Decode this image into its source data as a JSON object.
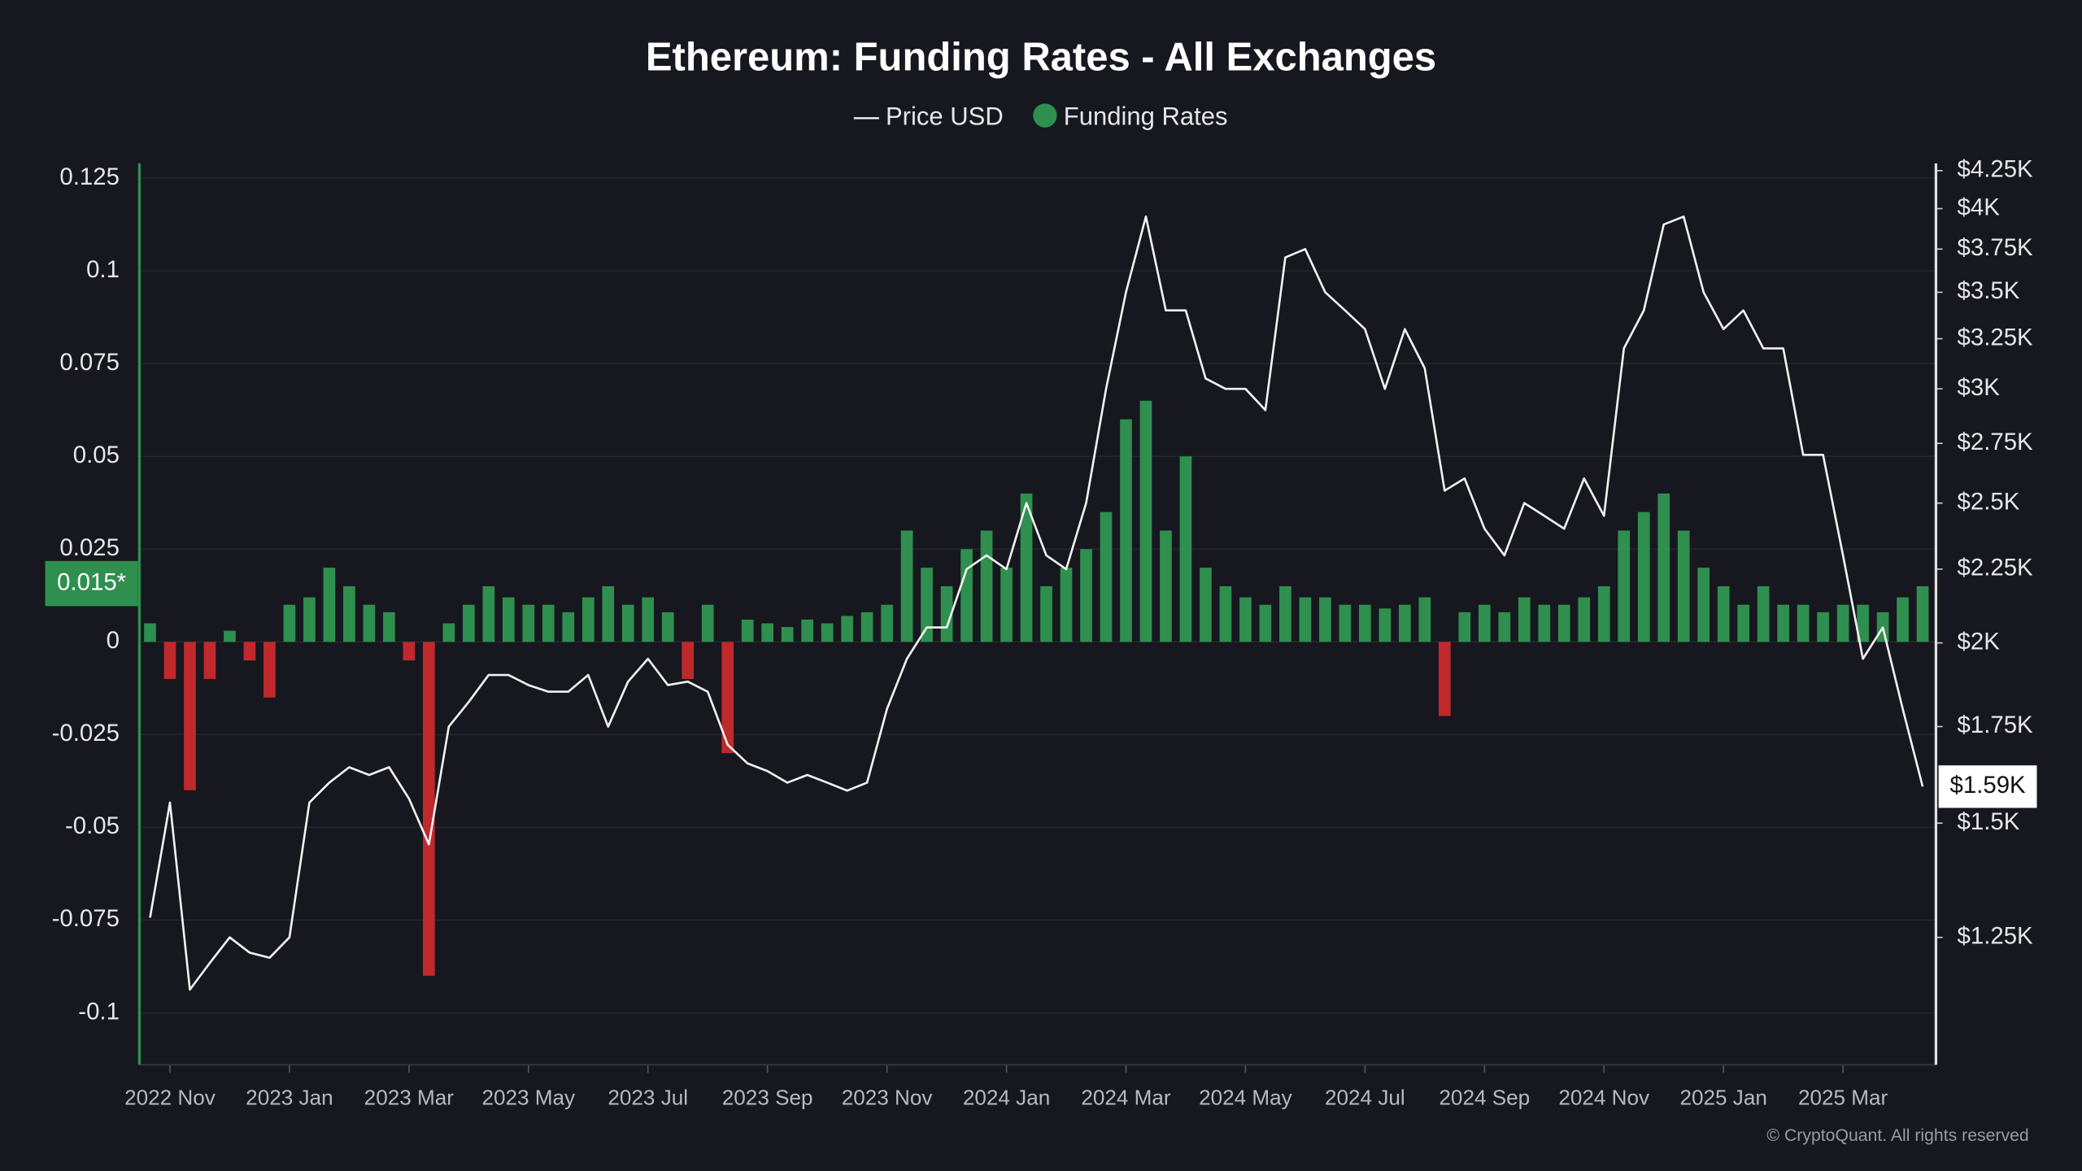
{
  "chart_data": {
    "type": "bar-line",
    "title": "Ethereum: Funding Rates - All Exchanges",
    "source": "© CryptoQuant. All rights reserved",
    "categories": [
      null,
      "2022 Nov",
      null,
      null,
      null,
      null,
      null,
      "2023 Jan",
      null,
      null,
      null,
      null,
      null,
      "2023 Mar",
      null,
      null,
      null,
      null,
      null,
      "2023 May",
      null,
      null,
      null,
      null,
      null,
      "2023 Jul",
      null,
      null,
      null,
      null,
      null,
      "2023 Sep",
      null,
      null,
      null,
      null,
      null,
      "2023 Nov",
      null,
      null,
      null,
      null,
      null,
      "2024 Jan",
      null,
      null,
      null,
      null,
      null,
      "2024 Mar",
      null,
      null,
      null,
      null,
      null,
      "2024 May",
      null,
      null,
      null,
      null,
      null,
      "2024 Jul",
      null,
      null,
      null,
      null,
      null,
      "2024 Sep",
      null,
      null,
      null,
      null,
      null,
      "2024 Nov",
      null,
      null,
      null,
      null,
      null,
      "2025 Jan",
      null,
      null,
      null,
      null,
      null,
      "2025 Mar",
      null,
      null,
      null,
      null
    ],
    "series": [
      {
        "name": "Price USD",
        "type": "line",
        "axis": "y2",
        "color": "#f2f2f2",
        "last_label": "$1.59K",
        "values": [
          1290,
          1550,
          1150,
          1200,
          1250,
          1220,
          1210,
          1250,
          1550,
          1600,
          1640,
          1620,
          1640,
          1560,
          1450,
          1750,
          1820,
          1900,
          1900,
          1870,
          1850,
          1850,
          1900,
          1750,
          1880,
          1950,
          1870,
          1880,
          1850,
          1700,
          1650,
          1630,
          1600,
          1620,
          1600,
          1580,
          1600,
          1800,
          1950,
          2050,
          2050,
          2250,
          2300,
          2250,
          2500,
          2300,
          2250,
          2500,
          3000,
          3500,
          3950,
          3400,
          3400,
          3050,
          3000,
          3000,
          2900,
          3700,
          3750,
          3500,
          3400,
          3300,
          3000,
          3300,
          3100,
          2550,
          2600,
          2400,
          2300,
          2500,
          2450,
          2400,
          2600,
          2450,
          3200,
          3400,
          3900,
          3950,
          3500,
          3300,
          3400,
          3200,
          3200,
          2700,
          2700,
          2300,
          1950,
          2050,
          1800,
          1590
        ]
      },
      {
        "name": "Funding Rates",
        "type": "bar",
        "color": "#2f8f4e",
        "negative_color": "#c0292b",
        "last_label": "0.015*",
        "values": [
          0.005,
          -0.01,
          -0.04,
          -0.01,
          0.003,
          -0.005,
          -0.015,
          0.01,
          0.012,
          0.02,
          0.015,
          0.01,
          0.008,
          -0.005,
          -0.09,
          0.005,
          0.01,
          0.015,
          0.012,
          0.01,
          0.01,
          0.008,
          0.012,
          0.015,
          0.01,
          0.012,
          0.008,
          -0.01,
          0.01,
          -0.03,
          0.006,
          0.005,
          0.004,
          0.006,
          0.005,
          0.007,
          0.008,
          0.01,
          0.03,
          0.02,
          0.015,
          0.025,
          0.03,
          0.02,
          0.04,
          0.015,
          0.02,
          0.025,
          0.035,
          0.06,
          0.065,
          0.03,
          0.05,
          0.02,
          0.015,
          0.012,
          0.01,
          0.015,
          0.012,
          0.012,
          0.01,
          0.01,
          0.009,
          0.01,
          0.012,
          -0.02,
          0.008,
          0.01,
          0.008,
          0.012,
          0.01,
          0.01,
          0.012,
          0.015,
          0.03,
          0.035,
          0.04,
          0.03,
          0.02,
          0.015,
          0.01,
          0.015,
          0.01,
          0.01,
          0.008,
          0.01,
          0.01,
          0.008,
          0.012,
          0.015
        ]
      }
    ],
    "ylim": [
      -0.114,
      0.129
    ],
    "yticks": [
      0.125,
      0.1,
      0.075,
      0.05,
      0.025,
      0,
      -0.025,
      -0.05,
      -0.075,
      -0.1
    ],
    "y2lim": [
      1020,
      4300
    ],
    "y2log": true,
    "y2ticks": [
      {
        "value": 4250,
        "label": "$4.25K"
      },
      {
        "value": 4000,
        "label": "$4K"
      },
      {
        "value": 3750,
        "label": "$3.75K"
      },
      {
        "value": 3500,
        "label": "$3.5K"
      },
      {
        "value": 3250,
        "label": "$3.25K"
      },
      {
        "value": 3000,
        "label": "$3K"
      },
      {
        "value": 2750,
        "label": "$2.75K"
      },
      {
        "value": 2500,
        "label": "$2.5K"
      },
      {
        "value": 2250,
        "label": "$2.25K"
      },
      {
        "value": 2000,
        "label": "$2K"
      },
      {
        "value": 1750,
        "label": "$1.75K"
      },
      {
        "value": 1500,
        "label": "$1.5K"
      },
      {
        "value": 1250,
        "label": "$1.25K"
      }
    ],
    "grid": true
  }
}
